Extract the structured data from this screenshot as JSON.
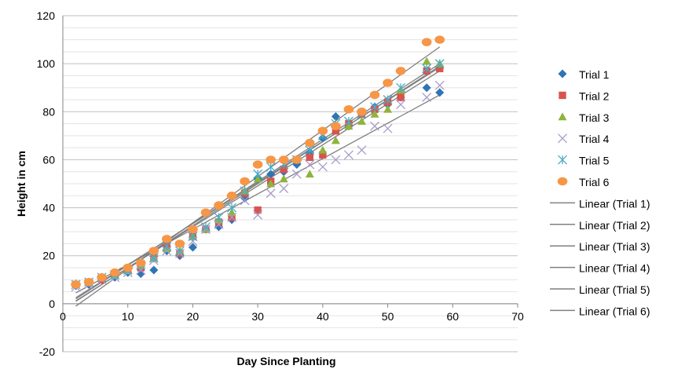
{
  "chart_data": {
    "type": "scatter",
    "title": "",
    "xlabel": "Day Since Planting",
    "ylabel": "Height in cm",
    "xlim": [
      0,
      70
    ],
    "ylim": [
      -20,
      120
    ],
    "x_ticks": [
      0,
      10,
      20,
      30,
      40,
      50,
      60,
      70
    ],
    "y_ticks": [
      -20,
      0,
      20,
      40,
      60,
      80,
      100,
      120
    ],
    "grid": "horizontal",
    "legend_position": "right",
    "x": [
      2,
      4,
      6,
      8,
      10,
      12,
      14,
      16,
      18,
      20,
      22,
      24,
      26,
      28,
      30,
      32,
      34,
      36,
      38,
      40,
      42,
      44,
      46,
      48,
      50,
      52,
      56,
      58
    ],
    "series": [
      {
        "name": "Trial 1",
        "marker": "diamond",
        "color": "#2E75B6",
        "values": [
          7.5,
          8,
          10,
          11,
          13,
          12.5,
          14,
          22,
          20,
          23.5,
          31,
          32,
          35,
          44,
          52,
          54,
          55,
          58,
          63,
          69,
          78,
          74,
          79,
          82,
          83,
          86,
          90,
          88
        ],
        "trend": [
          1.2,
          97
        ]
      },
      {
        "name": "Trial 2",
        "marker": "square",
        "color": "#D9534F",
        "values": [
          8,
          9,
          10,
          12,
          14,
          15,
          19,
          24,
          21,
          28,
          31,
          34,
          36,
          46,
          39,
          51,
          56,
          60,
          61,
          62,
          72,
          75,
          79,
          81,
          84,
          86,
          97,
          98
        ],
        "trend": [
          2.5,
          98.5
        ]
      },
      {
        "name": "Trial 3",
        "marker": "triangle",
        "color": "#8DB43C",
        "values": [
          8.5,
          9,
          11,
          12,
          14,
          16,
          19,
          23,
          22,
          28,
          31,
          35,
          38,
          47,
          52,
          50,
          52,
          60,
          54,
          64,
          68,
          74,
          76,
          79,
          81,
          89,
          101,
          100
        ],
        "trend": [
          2,
          100
        ]
      },
      {
        "name": "Trial 4",
        "marker": "x",
        "color": "#A99BCB",
        "values": [
          7,
          8,
          10,
          11,
          13,
          14,
          18,
          22,
          21,
          26,
          31,
          33,
          36,
          43,
          37,
          46,
          48,
          54,
          58,
          57,
          60,
          62,
          64,
          74,
          73,
          83,
          86,
          91
        ],
        "trend": [
          4.5,
          87
        ]
      },
      {
        "name": "Trial 5",
        "marker": "asterisk",
        "color": "#4BACC6",
        "values": [
          8,
          9,
          11,
          12,
          14,
          16,
          19,
          24,
          22,
          28,
          32,
          36,
          40,
          47,
          54,
          57,
          58,
          60,
          64,
          70,
          75,
          76,
          79,
          82,
          85,
          90,
          98,
          100
        ],
        "trend": [
          1,
          99
        ]
      },
      {
        "name": "Trial 6",
        "marker": "circle",
        "color": "#F79646",
        "values": [
          8,
          9,
          11,
          13,
          15,
          17,
          22,
          27,
          25,
          31,
          38,
          41,
          45,
          51,
          58,
          60,
          60,
          60,
          67,
          72,
          74,
          81,
          80,
          87,
          92,
          97,
          109,
          110
        ],
        "trend": [
          -1,
          107
        ]
      }
    ],
    "trendline_legend": [
      "Linear (Trial 1)",
      "Linear (Trial 2)",
      "Linear (Trial 3)",
      "Linear (Trial 4)",
      "Linear (Trial 5)",
      "Linear (Trial 6)"
    ],
    "trendline_color": "#7F7F7F"
  }
}
